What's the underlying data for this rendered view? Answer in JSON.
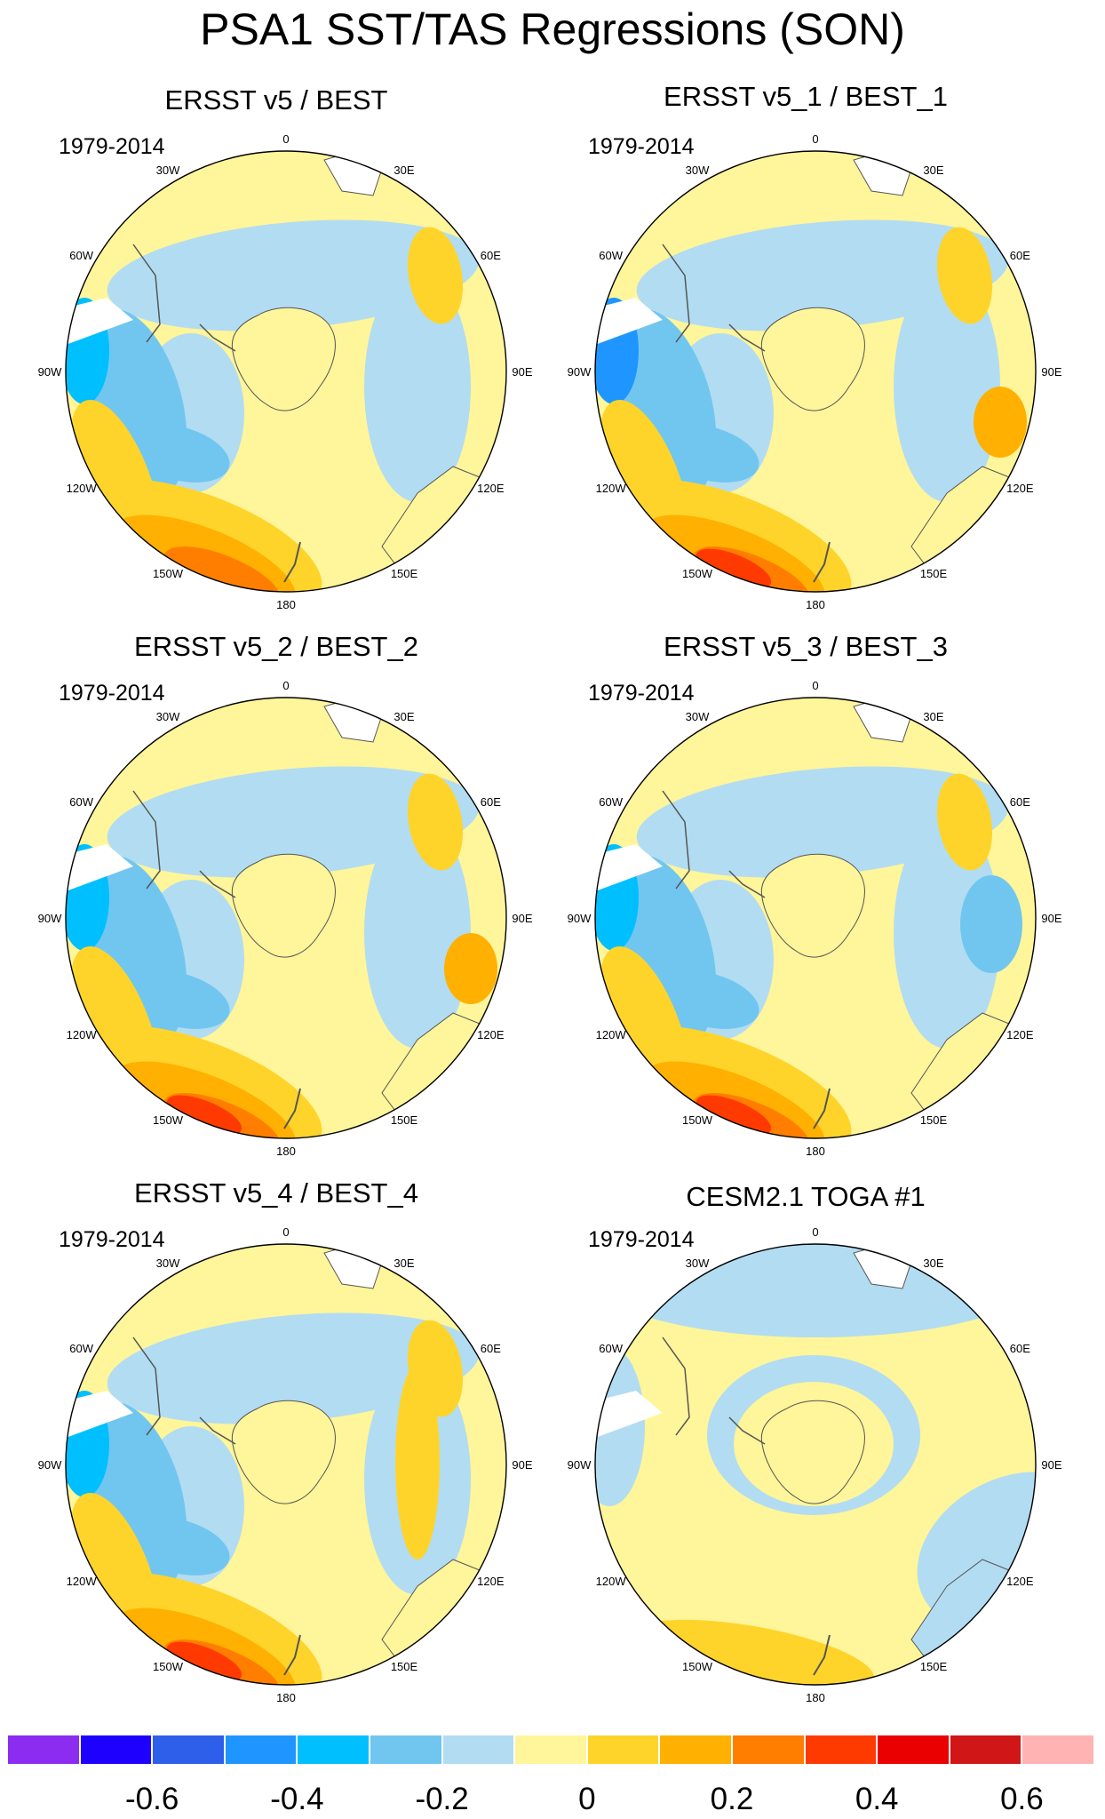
{
  "title": "PSA1 SST/TAS Regressions (SON)",
  "panels": [
    {
      "title": "ERSST v5 / BEST",
      "period": "1979-2014"
    },
    {
      "title": "ERSST v5_1 / BEST_1",
      "period": "1979-2014"
    },
    {
      "title": "ERSST v5_2 / BEST_2",
      "period": "1979-2014"
    },
    {
      "title": "ERSST v5_3 / BEST_3",
      "period": "1979-2014"
    },
    {
      "title": "ERSST v5_4 / BEST_4",
      "period": "1979-2014"
    },
    {
      "title": "CESM2.1 TOGA #1",
      "period": "1979-2014"
    }
  ],
  "longitude_labels": [
    "0",
    "30E",
    "60E",
    "90E",
    "120E",
    "150E",
    "180",
    "150W",
    "120W",
    "90W",
    "60W",
    "30W"
  ],
  "colorbar": {
    "colors": [
      "#8b2cf0",
      "#1e00ff",
      "#2e5fea",
      "#1f96ff",
      "#00bfff",
      "#71c6f0",
      "#b2dcf2",
      "#fff59a",
      "#ffd42a",
      "#ffb000",
      "#ff7e00",
      "#ff3a00",
      "#ea0000",
      "#d01616",
      "#ffb3b3"
    ],
    "tick_labels": [
      "-0.6",
      "-0.4",
      "-0.2",
      "0",
      "0.2",
      "0.4",
      "0.6"
    ]
  }
}
